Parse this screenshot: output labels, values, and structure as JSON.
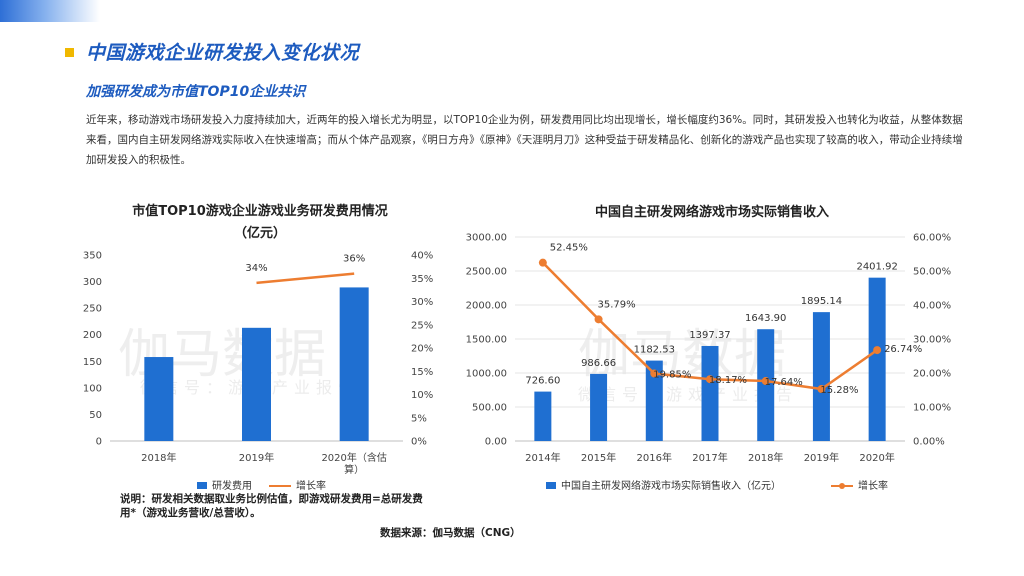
{
  "header": {
    "title": "中国游戏企业研发投入变化状况",
    "subtitle": "加强研发成为市值TOP10企业共识",
    "paragraph": "近年来，移动游戏市场研发投入力度持续加大，近两年的投入增长尤为明显，以TOP10企业为例，研发费用同比均出现增长，增长幅度约36%。同时，其研发投入也转化为收益，从整体数据来看，国内自主研发网络游戏实际收入在快速增高；而从个体产品观察，《明日方舟》《原神》《天涯明月刀》这种受益于研发精品化、创新化的游戏产品也实现了较高的收入，带动企业持续增加研发投入的积极性。"
  },
  "watermark": {
    "main": "伽马数据",
    "sub": "微信号：游戏产业报告"
  },
  "chart_data": [
    {
      "type": "bar",
      "title": "市值TOP10游戏企业游戏业务研发费用情况",
      "title_line2": "（亿元）",
      "categories": [
        "2018年",
        "2019年",
        "2020年（含估算）"
      ],
      "category_labels": [
        [
          "2018年"
        ],
        [
          "2019年"
        ],
        [
          "2020年（含估",
          "算）"
        ]
      ],
      "series": [
        {
          "name": "研发费用",
          "values": [
            158,
            213,
            289
          ],
          "color": "#1f6fd1",
          "axis": "left"
        },
        {
          "name": "增长率",
          "values": [
            null,
            0.34,
            0.36
          ],
          "labels": [
            "",
            "34%",
            "36%"
          ],
          "color": "#ed7d31",
          "axis": "right",
          "kind": "line"
        }
      ],
      "y_left": {
        "min": 0,
        "max": 350,
        "ticks": [
          "0",
          "50",
          "100",
          "150",
          "200",
          "250",
          "300",
          "350"
        ]
      },
      "y_right": {
        "min": 0,
        "max": 0.4,
        "ticks": [
          "0%",
          "5%",
          "10%",
          "15%",
          "20%",
          "25%",
          "30%",
          "35%",
          "40%"
        ]
      },
      "legend": "bottom"
    },
    {
      "type": "bar",
      "title": "中国自主研发网络游戏市场实际销售收入",
      "categories": [
        "2014年",
        "2015年",
        "2016年",
        "2017年",
        "2018年",
        "2019年",
        "2020年"
      ],
      "series": [
        {
          "name": "中国自主研发网络游戏市场实际销售收入（亿元）",
          "values": [
            726.6,
            986.66,
            1182.53,
            1397.37,
            1643.9,
            1895.14,
            2401.92
          ],
          "labels": [
            "726.60",
            "986.66",
            "1182.53",
            "1397.37",
            "1643.90",
            "1895.14",
            "2401.92"
          ],
          "color": "#1f6fd1",
          "axis": "left"
        },
        {
          "name": "增长率",
          "values": [
            0.5245,
            0.3579,
            0.1985,
            0.1817,
            0.1764,
            0.1528,
            0.2674
          ],
          "labels": [
            "52.45%",
            "35.79%",
            "19.85%",
            "18.17%",
            "17.64%",
            "15.28%",
            "26.74%"
          ],
          "color": "#ed7d31",
          "axis": "right",
          "kind": "line"
        }
      ],
      "y_left": {
        "min": 0,
        "max": 3000,
        "ticks": [
          "0.00",
          "500.00",
          "1000.00",
          "1500.00",
          "2000.00",
          "2500.00",
          "3000.00"
        ]
      },
      "y_right": {
        "min": 0,
        "max": 0.6,
        "ticks": [
          "0.00%",
          "10.00%",
          "20.00%",
          "30.00%",
          "40.00%",
          "50.00%",
          "60.00%"
        ]
      },
      "legend": "bottom"
    }
  ],
  "footer": {
    "note": "说明：研发相关数据取业务比例估值，即游戏研发费用=总研发费用*（游戏业务营收/总营收）。",
    "source": "数据来源：伽马数据（CNG）"
  }
}
